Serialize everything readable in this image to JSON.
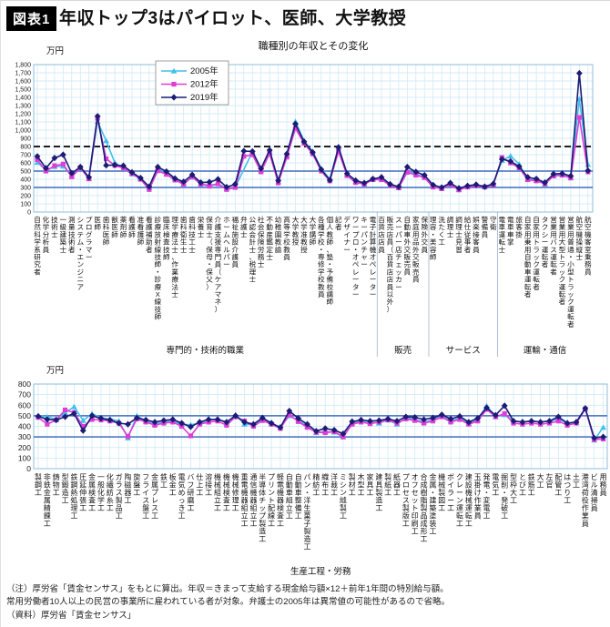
{
  "header": {
    "badge": "図表1",
    "title": "年収トップ3はパイロット、医師、大学教授"
  },
  "footer": {
    "note_line1": "（注）厚労省「賃金センサス」をもとに算出。年収＝きまって支給する現金給与額×12＋前年1年間の特別給与額。",
    "note_line2": "常用労働者10人以上の民営の事業所に雇われている者が対象。弁護士の2005年は異常値の可能性があるので省略。",
    "source_line": "（資料）厚労省「賃金センサス」"
  },
  "palette": {
    "grid": "#c9e8f4",
    "plot_border": "#8fbcd8",
    "ref_solid": "#3f6cbf",
    "ref_dashed": "#000000",
    "axis_text": "#222222"
  },
  "chart_data": [
    {
      "type": "line",
      "title": "職種別の年収とその変化",
      "unit": "万円",
      "ylim": [
        0,
        1800
      ],
      "ytick": 100,
      "ref_dashed": [
        800
      ],
      "ref_solid": [
        500,
        300
      ],
      "legend_position": "upper-left-center",
      "groups": [
        {
          "label": "専門的・技術的職業",
          "span": [
            0,
            39
          ]
        },
        {
          "label": "販売",
          "span": [
            40,
            45
          ]
        },
        {
          "label": "サービス",
          "span": [
            46,
            53
          ]
        },
        {
          "label": "運輸・通信",
          "span": [
            54,
            64
          ]
        }
      ],
      "categories": [
        "自然科学系研究者",
        "化学分析員",
        "技術士",
        "一級建築士",
        "測量技術者",
        "システム・エンジニア",
        "プログラマー",
        "医師",
        "歯科医師",
        "獣医師",
        "薬剤師",
        "看護師",
        "准看護師",
        "看護補助者",
        "診療放射線技師・診療X線技師",
        "臨床検査技師",
        "理学療法士、作業療法士",
        "歯科衛生士",
        "歯科技工士",
        "栄養士",
        "保育士（保母・保父）",
        "介護支援専門員（ケアマネ）",
        "ホームヘルパー",
        "福祉施設介護員",
        "弁護士",
        "公認会計士、税理士",
        "社会保険労務士",
        "不動産鑑定士",
        "幼稚園教諭",
        "高等学校教員",
        "大学教授",
        "大学准教授",
        "大学講師",
        "各種学校・専修学校教員",
        "個人教師、塾・予備校講師",
        "記者",
        "デザイナー",
        "ワープロ・オペレーター",
        "キーパンチャー",
        "電子計算機オペレーター",
        "百貨店店員",
        "販売店員（百貨店店員以外）",
        "スーパー店チェッカー",
        "自動車外交販売員",
        "家庭用品外交販売員",
        "保険外交員",
        "理容・美容師",
        "洗たく工",
        "調理士",
        "調理士見習",
        "給仕従事者",
        "娯楽接客員",
        "警備員",
        "守衛",
        "電車運転士",
        "電車車掌",
        "旅客掛",
        "自家用乗用自動車運転者",
        "自家用トラック運転者",
        "タクシー運転者",
        "営業用バス運転者",
        "営業用大型トラック運転者",
        "営業用普通・小型トラック運転者",
        "航空機操縦士",
        "航空機客室乗務員"
      ],
      "series": [
        {
          "name": "2005年",
          "color": "#3fc1e9",
          "marker": "triangle",
          "values": [
            605,
            515,
            555,
            560,
            445,
            540,
            410,
            1105,
            870,
            605,
            530,
            465,
            405,
            300,
            535,
            465,
            405,
            345,
            425,
            345,
            325,
            345,
            290,
            305,
            null,
            735,
            510,
            730,
            370,
            690,
            1105,
            870,
            740,
            530,
            400,
            795,
            460,
            370,
            345,
            400,
            400,
            330,
            300,
            505,
            460,
            430,
            315,
            290,
            330,
            275,
            310,
            320,
            310,
            340,
            630,
            685,
            585,
            400,
            385,
            340,
            445,
            455,
            420,
            1380,
            580
          ]
        },
        {
          "name": "2012年",
          "color": "#e03cd8",
          "marker": "square",
          "values": [
            640,
            500,
            565,
            585,
            430,
            540,
            405,
            1145,
            650,
            570,
            535,
            470,
            400,
            275,
            505,
            460,
            390,
            340,
            430,
            340,
            315,
            345,
            275,
            300,
            680,
            700,
            490,
            715,
            355,
            670,
            1020,
            840,
            710,
            500,
            380,
            740,
            445,
            360,
            340,
            395,
            395,
            325,
            295,
            485,
            450,
            420,
            305,
            285,
            335,
            270,
            305,
            320,
            305,
            330,
            665,
            600,
            540,
            395,
            380,
            345,
            440,
            450,
            415,
            1155,
            490
          ]
        },
        {
          "name": "2019年",
          "color": "#1c1c75",
          "marker": "diamond",
          "values": [
            680,
            535,
            660,
            700,
            475,
            550,
            425,
            1170,
            570,
            575,
            565,
            485,
            415,
            310,
            550,
            495,
            410,
            370,
            455,
            360,
            365,
            400,
            305,
            340,
            745,
            740,
            530,
            755,
            385,
            710,
            1075,
            860,
            730,
            520,
            390,
            790,
            470,
            385,
            355,
            405,
            425,
            340,
            310,
            550,
            490,
            450,
            330,
            300,
            355,
            290,
            320,
            335,
            310,
            345,
            645,
            620,
            555,
            425,
            405,
            360,
            465,
            470,
            440,
            1695,
            505
          ]
        }
      ]
    },
    {
      "type": "line",
      "title": "",
      "unit": "万円",
      "ylim": [
        0,
        800
      ],
      "ytick": 100,
      "ref_dashed": [],
      "ref_solid": [
        500,
        300
      ],
      "groups": [
        {
          "label": "生産工程・労務",
          "span": [
            0,
            63
          ]
        }
      ],
      "categories": [
        "製鋼工",
        "非鉄金属精錬工",
        "鋳物工",
        "型鍛造工",
        "鉄鋼熱処理工",
        "圧延伸張工",
        "金属検査工",
        "一般化学工",
        "化繊紡糸工",
        "ガラス製品工",
        "陶磁器工",
        "旋盤工",
        "フライス盤工",
        "金属プレス工",
        "鉄工",
        "板金工",
        "電気めっき工",
        "バフ研磨工",
        "仕上工",
        "溶接工",
        "機械組立工",
        "機械検査工",
        "機械修理工",
        "重電機器組立工",
        "通信機器組立工",
        "半導体チップ製造工",
        "プリント配線工",
        "軽電機器検査工",
        "自動車組立工",
        "自動車整備工",
        "パン・洋生菓子製造工",
        "精紡工",
        "織布工",
        "洋裁工",
        "ミシン縫製工",
        "製材工",
        "木型工",
        "家具工",
        "建具製造工",
        "製紙工",
        "紙器工",
        "プロセス製版工",
        "オフセット印刷工",
        "合成樹脂製品成形工",
        "金属・建築塗装工",
        "機械製図工",
        "ボイラー工",
        "クレーン運転工",
        "建設機械運転工",
        "玉掛け作業員",
        "発電・変電工",
        "電気工",
        "掘削・発破工",
        "型枠大工",
        "とび工",
        "鉄筋工",
        "大工",
        "左官",
        "配管工",
        "はつり工",
        "土工",
        "港湾荷役作業員",
        "ビル清掃員",
        "用務員"
      ],
      "series": [
        {
          "name": "2005年",
          "color": "#3fc1e9",
          "marker": "triangle",
          "values": [
            500,
            490,
            465,
            530,
            585,
            455,
            520,
            480,
            470,
            450,
            290,
            500,
            450,
            420,
            440,
            450,
            420,
            415,
            430,
            460,
            470,
            430,
            510,
            420,
            415,
            465,
            430,
            390,
            500,
            455,
            400,
            340,
            350,
            345,
            300,
            430,
            455,
            440,
            430,
            460,
            420,
            480,
            465,
            440,
            460,
            500,
            450,
            480,
            430,
            460,
            595,
            490,
            510,
            450,
            440,
            450,
            440,
            450,
            470,
            430,
            440,
            570,
            270,
            390
          ]
        },
        {
          "name": "2012年",
          "color": "#e03cd8",
          "marker": "square",
          "values": [
            485,
            420,
            460,
            555,
            530,
            400,
            465,
            460,
            450,
            430,
            305,
            470,
            440,
            410,
            430,
            440,
            400,
            310,
            420,
            440,
            450,
            410,
            490,
            450,
            400,
            455,
            420,
            380,
            510,
            445,
            390,
            345,
            340,
            350,
            300,
            420,
            440,
            425,
            440,
            460,
            430,
            470,
            455,
            430,
            450,
            490,
            440,
            465,
            420,
            450,
            560,
            490,
            520,
            430,
            420,
            430,
            420,
            430,
            450,
            410,
            430,
            565,
            275,
            280
          ]
        },
        {
          "name": "2019年",
          "color": "#1c1c75",
          "marker": "diamond",
          "values": [
            495,
            465,
            460,
            490,
            520,
            360,
            500,
            475,
            460,
            430,
            420,
            480,
            460,
            440,
            455,
            465,
            430,
            395,
            440,
            465,
            465,
            440,
            500,
            440,
            420,
            480,
            430,
            390,
            545,
            475,
            420,
            355,
            380,
            365,
            330,
            445,
            460,
            450,
            455,
            470,
            450,
            490,
            485,
            465,
            480,
            510,
            470,
            495,
            440,
            475,
            575,
            505,
            595,
            450,
            440,
            450,
            440,
            450,
            490,
            430,
            440,
            570,
            290,
            300
          ]
        }
      ]
    }
  ]
}
